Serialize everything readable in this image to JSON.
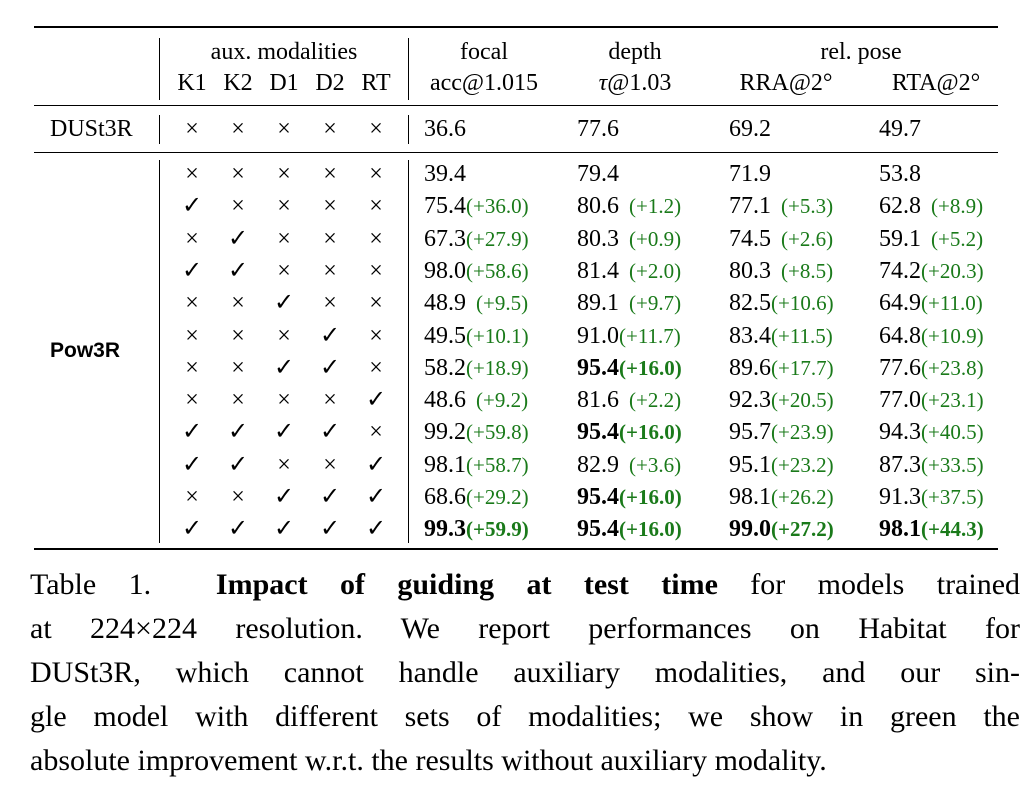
{
  "table": {
    "header": {
      "aux_group": "aux. modalities",
      "aux_cols": [
        "K1",
        "K2",
        "D1",
        "D2",
        "RT"
      ],
      "focal_top": "focal",
      "focal_bottom": "acc@1.015",
      "depth_top": "depth",
      "depth_tau": "τ",
      "depth_bottom": "@1.03",
      "pose_top": "rel. pose",
      "rra": "RRA@2°",
      "rta": "RTA@2°"
    },
    "dust3r": {
      "label": "DUSt3R",
      "marks": [
        "×",
        "×",
        "×",
        "×",
        "×"
      ],
      "values": [
        "36.6",
        "77.6",
        "69.2",
        "49.7"
      ]
    },
    "pow3r_label": "Pow3R",
    "pow3r_rows": [
      {
        "marks": [
          "×",
          "×",
          "×",
          "×",
          "×"
        ],
        "cells": [
          {
            "v": "39.4",
            "d": ""
          },
          {
            "v": "79.4",
            "d": ""
          },
          {
            "v": "71.9",
            "d": ""
          },
          {
            "v": "53.8",
            "d": ""
          }
        ]
      },
      {
        "marks": [
          "✓",
          "×",
          "×",
          "×",
          "×"
        ],
        "cells": [
          {
            "v": "75.4",
            "d": "(+36.0)"
          },
          {
            "v": "80.6",
            "d": "(+1.2)"
          },
          {
            "v": "77.1",
            "d": "(+5.3)"
          },
          {
            "v": "62.8",
            "d": "(+8.9)"
          }
        ]
      },
      {
        "marks": [
          "×",
          "✓",
          "×",
          "×",
          "×"
        ],
        "cells": [
          {
            "v": "67.3",
            "d": "(+27.9)"
          },
          {
            "v": "80.3",
            "d": "(+0.9)"
          },
          {
            "v": "74.5",
            "d": "(+2.6)"
          },
          {
            "v": "59.1",
            "d": "(+5.2)"
          }
        ]
      },
      {
        "marks": [
          "✓",
          "✓",
          "×",
          "×",
          "×"
        ],
        "cells": [
          {
            "v": "98.0",
            "d": "(+58.6)"
          },
          {
            "v": "81.4",
            "d": "(+2.0)"
          },
          {
            "v": "80.3",
            "d": "(+8.5)"
          },
          {
            "v": "74.2",
            "d": "(+20.3)"
          }
        ]
      },
      {
        "marks": [
          "×",
          "×",
          "✓",
          "×",
          "×"
        ],
        "cells": [
          {
            "v": "48.9",
            "d": "(+9.5)"
          },
          {
            "v": "89.1",
            "d": "(+9.7)"
          },
          {
            "v": "82.5",
            "d": "(+10.6)"
          },
          {
            "v": "64.9",
            "d": "(+11.0)"
          }
        ]
      },
      {
        "marks": [
          "×",
          "×",
          "×",
          "✓",
          "×"
        ],
        "cells": [
          {
            "v": "49.5",
            "d": "(+10.1)"
          },
          {
            "v": "91.0",
            "d": "(+11.7)"
          },
          {
            "v": "83.4",
            "d": "(+11.5)"
          },
          {
            "v": "64.8",
            "d": "(+10.9)"
          }
        ]
      },
      {
        "marks": [
          "×",
          "×",
          "✓",
          "✓",
          "×"
        ],
        "cells": [
          {
            "v": "58.2",
            "d": "(+18.9)"
          },
          {
            "v": "95.4",
            "d": "(+16.0)",
            "bold": true
          },
          {
            "v": "89.6",
            "d": "(+17.7)"
          },
          {
            "v": "77.6",
            "d": "(+23.8)"
          }
        ]
      },
      {
        "marks": [
          "×",
          "×",
          "×",
          "×",
          "✓"
        ],
        "cells": [
          {
            "v": "48.6",
            "d": "(+9.2)"
          },
          {
            "v": "81.6",
            "d": "(+2.2)"
          },
          {
            "v": "92.3",
            "d": "(+20.5)"
          },
          {
            "v": "77.0",
            "d": "(+23.1)"
          }
        ]
      },
      {
        "marks": [
          "✓",
          "✓",
          "✓",
          "✓",
          "×"
        ],
        "cells": [
          {
            "v": "99.2",
            "d": "(+59.8)"
          },
          {
            "v": "95.4",
            "d": "(+16.0)",
            "bold": true
          },
          {
            "v": "95.7",
            "d": "(+23.9)"
          },
          {
            "v": "94.3",
            "d": "(+40.5)"
          }
        ]
      },
      {
        "marks": [
          "✓",
          "✓",
          "×",
          "×",
          "✓"
        ],
        "cells": [
          {
            "v": "98.1",
            "d": "(+58.7)"
          },
          {
            "v": "82.9",
            "d": "(+3.6)"
          },
          {
            "v": "95.1",
            "d": "(+23.2)"
          },
          {
            "v": "87.3",
            "d": "(+33.5)"
          }
        ]
      },
      {
        "marks": [
          "×",
          "×",
          "✓",
          "✓",
          "✓"
        ],
        "cells": [
          {
            "v": "68.6",
            "d": "(+29.2)"
          },
          {
            "v": "95.4",
            "d": "(+16.0)",
            "bold": true
          },
          {
            "v": "98.1",
            "d": "(+26.2)"
          },
          {
            "v": "91.3",
            "d": "(+37.5)"
          }
        ]
      },
      {
        "marks": [
          "✓",
          "✓",
          "✓",
          "✓",
          "✓"
        ],
        "cells": [
          {
            "v": "99.3",
            "d": "(+59.9)",
            "bold": true
          },
          {
            "v": "95.4",
            "d": "(+16.0)",
            "bold": true
          },
          {
            "v": "99.0",
            "d": "(+27.2)",
            "bold": true
          },
          {
            "v": "98.1",
            "d": "(+44.3)",
            "bold": true
          }
        ]
      }
    ],
    "delta_color": "#1a7a1a"
  },
  "caption": {
    "label": "Table 1.",
    "bold": "Impact of guiding at test time",
    "line1_rest": " for models trained",
    "line2": "at 224×224 resolution.  We report performances on Habitat for",
    "line3": "DUSt3R, which cannot handle auxiliary modalities, and our sin-",
    "line4": "gle model with different sets of modalities; we show in green the",
    "line5": "absolute improvement w.r.t. the results without auxiliary modality."
  }
}
